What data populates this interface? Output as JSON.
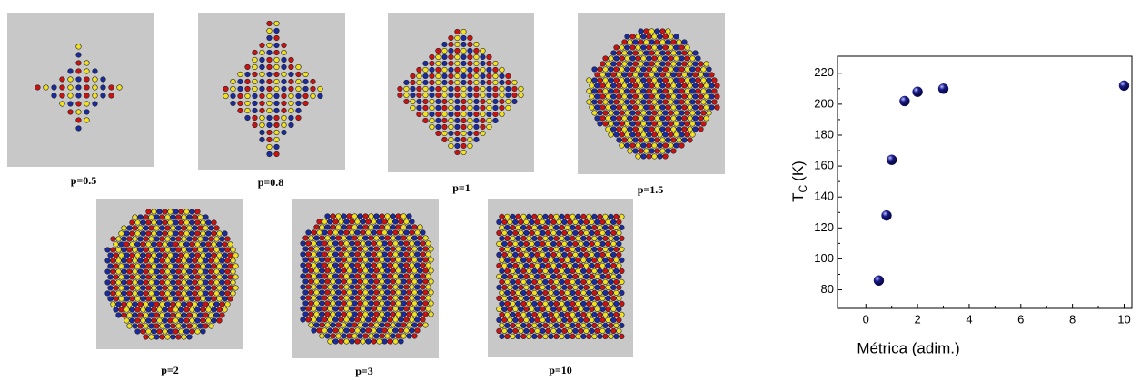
{
  "panels": [
    {
      "label": "p=0.5"
    },
    {
      "label": "p=0.8"
    },
    {
      "label": "p=1"
    },
    {
      "label": "p=1.5"
    },
    {
      "label": "p=2"
    },
    {
      "label": "p=3"
    },
    {
      "label": "p=10"
    }
  ],
  "chart_data": {
    "type": "scatter",
    "xlabel": "Métrica (adim.)",
    "ylabel": {
      "main": "T",
      "sub": "C",
      "unit": "(K)"
    },
    "x": [
      0.5,
      0.8,
      1,
      1.5,
      2,
      3,
      10
    ],
    "values": [
      86,
      128,
      164,
      202,
      208,
      210,
      212
    ],
    "color": "#1a1a8c",
    "xlim": [
      -1.1,
      10.3
    ],
    "xticks": [
      0,
      2,
      4,
      6,
      8,
      10
    ],
    "ylim": [
      68,
      231
    ],
    "yticks": [
      80,
      100,
      120,
      140,
      160,
      180,
      200,
      220
    ]
  }
}
